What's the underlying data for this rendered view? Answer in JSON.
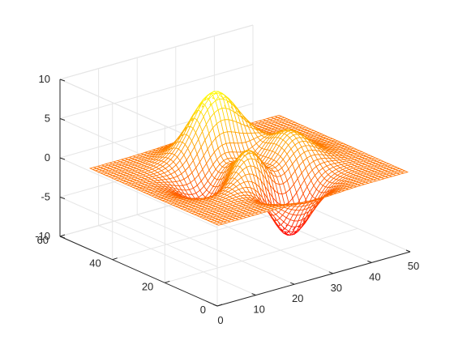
{
  "chart_data": {
    "type": "surface-mesh",
    "function": "peaks",
    "title": "",
    "xlabel": "",
    "ylabel": "",
    "zlabel": "",
    "xlim": [
      0,
      50
    ],
    "ylim": [
      0,
      60
    ],
    "zlim": [
      -10,
      10
    ],
    "x_ticks": [
      "0",
      "10",
      "20",
      "30",
      "40",
      "50"
    ],
    "y_ticks": [
      "0",
      "20",
      "40",
      "60"
    ],
    "z_ticks": [
      "-10",
      "-5",
      "0",
      "5",
      "10"
    ],
    "grid": true,
    "box": true,
    "colormap": "autumn",
    "colormap_range": [
      "#ff0000",
      "#ffff00"
    ],
    "mesh_size": [
      49,
      49
    ]
  }
}
